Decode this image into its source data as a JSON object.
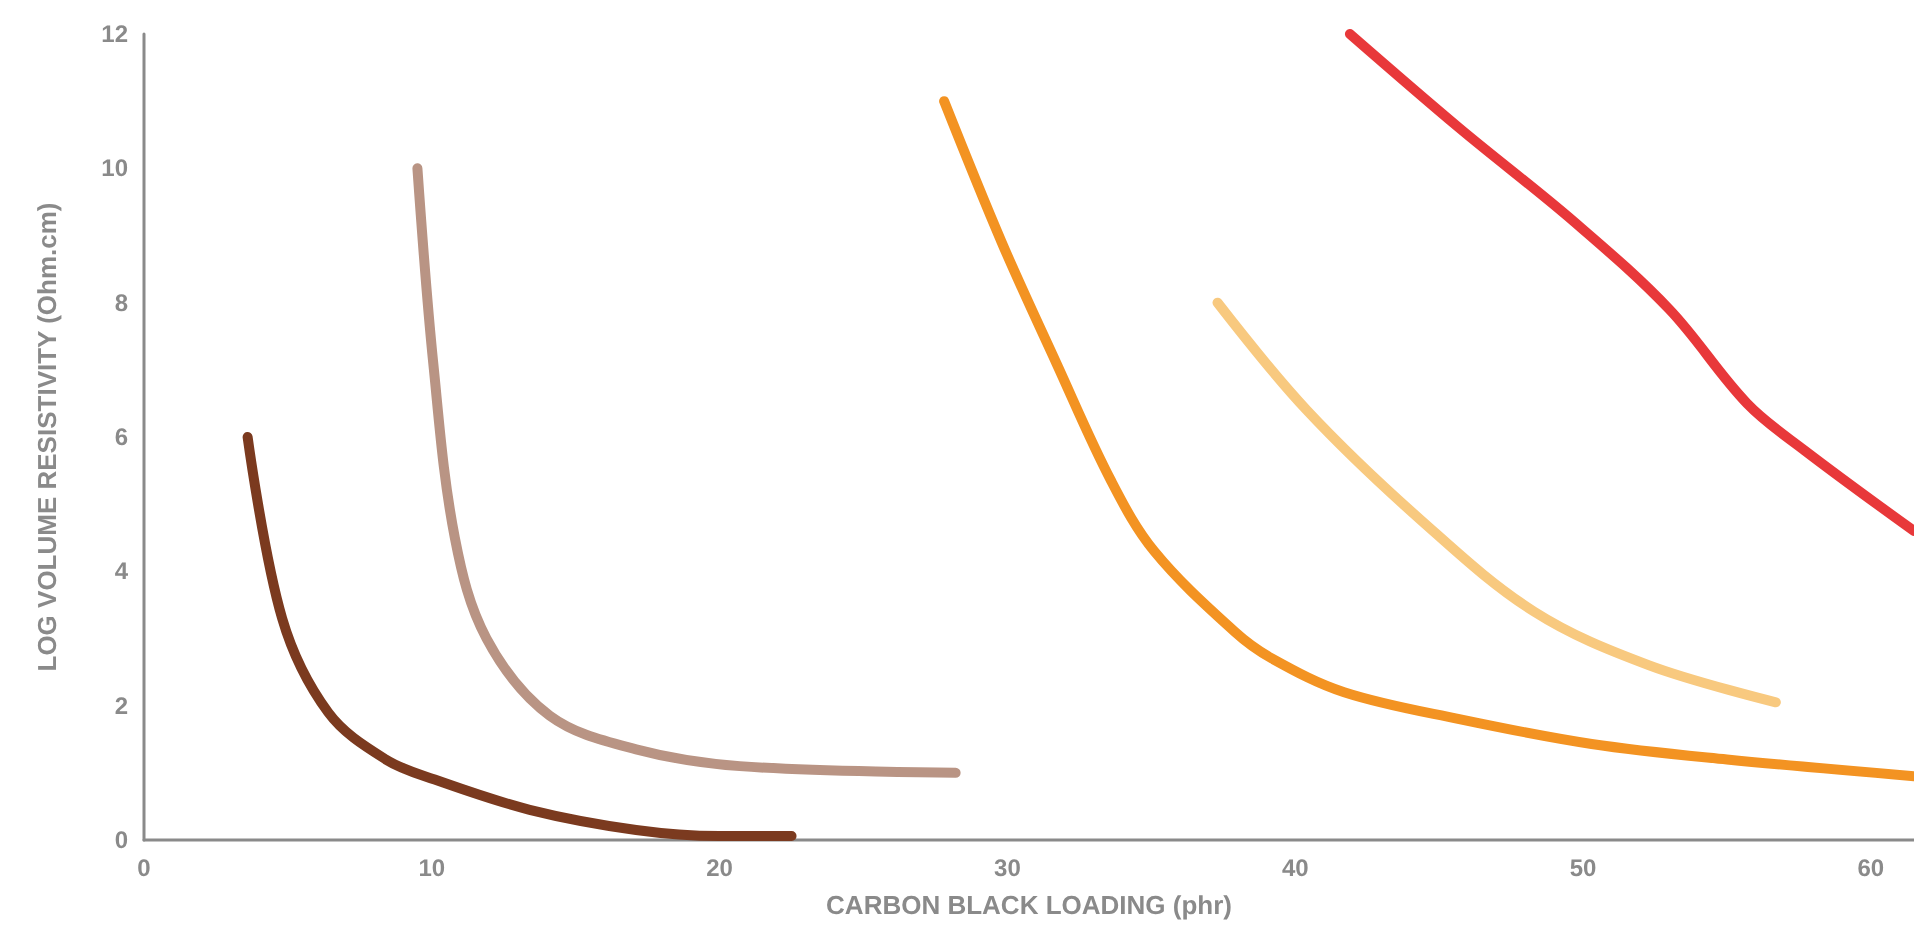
{
  "chart_data": {
    "type": "line",
    "xlabel": "CARBON BLACK LOADING (phr)",
    "ylabel": "LOG VOLUME RESISTIVITY (Ohm.cm)",
    "xlim": [
      0,
      61.5
    ],
    "xticks": [
      0,
      10,
      20,
      30,
      40,
      50,
      60
    ],
    "ylim": [
      0,
      12
    ],
    "yticks": [
      0,
      2,
      4,
      6,
      8,
      10,
      12
    ],
    "grid": false,
    "marker": "none",
    "line_style": "solid",
    "series": [
      {
        "color": "#7b3a1f",
        "x": [
          3.6,
          4.8,
          6.4,
          8.4,
          10.1,
          13.4,
          17.1,
          20,
          22.5
        ],
        "values": [
          6,
          3.3,
          1.9,
          1.2,
          0.9,
          0.45,
          0.15,
          0.06,
          0.06
        ]
      },
      {
        "color": "#b99484",
        "x": [
          9.5,
          10.05,
          10.8,
          11.9,
          14.1,
          17.1,
          20.7,
          28.2
        ],
        "values": [
          10,
          7.1,
          4.5,
          3,
          1.85,
          1.35,
          1.1,
          1
        ]
      },
      {
        "color": "#f39322",
        "x": [
          27.8,
          29.8,
          31.7,
          33.6,
          35.1,
          37.9,
          39.2,
          41.7,
          45.7,
          50.3,
          55,
          61.5
        ],
        "values": [
          11,
          8.9,
          7.1,
          5.35,
          4.3,
          3.1,
          2.7,
          2.2,
          1.8,
          1.43,
          1.2,
          0.95
        ]
      },
      {
        "color": "#f8c97f",
        "x": [
          37.3,
          40.4,
          44.4,
          48.3,
          52.3,
          56.7
        ],
        "values": [
          8,
          6.4,
          4.75,
          3.4,
          2.6,
          2.05
        ]
      },
      {
        "color": "#e8383a",
        "x": [
          41.9,
          45.7,
          49.7,
          53,
          55.7,
          57.7,
          61.5
        ],
        "values": [
          12,
          10.6,
          9.2,
          7.9,
          6.5,
          5.8,
          4.6
        ]
      }
    ]
  }
}
